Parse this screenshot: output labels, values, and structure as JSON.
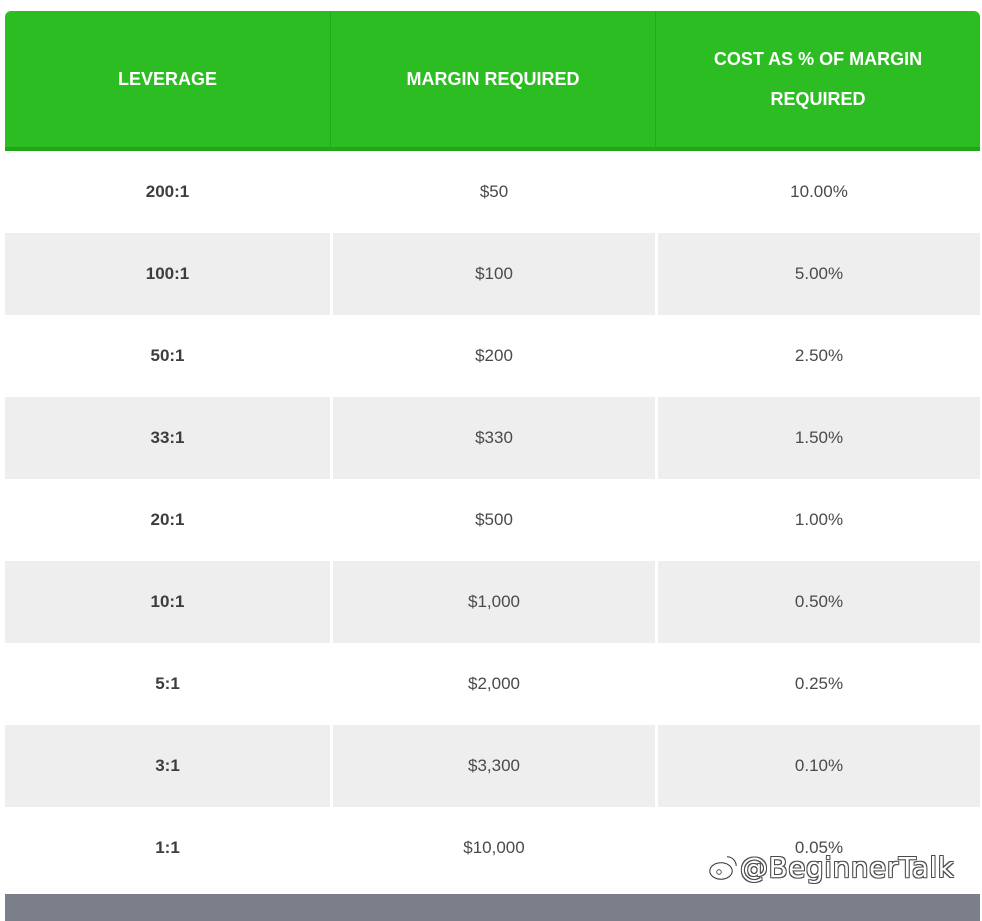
{
  "table": {
    "headers": {
      "leverage": "LEVERAGE",
      "margin": "MARGIN REQUIRED",
      "cost_line1": "COST AS % OF MARGIN",
      "cost_line2": "REQUIRED"
    },
    "rows": [
      {
        "leverage": "200:1",
        "margin": "$50",
        "cost": "10.00%"
      },
      {
        "leverage": "100:1",
        "margin": "$100",
        "cost": "5.00%"
      },
      {
        "leverage": "50:1",
        "margin": "$200",
        "cost": "2.50%"
      },
      {
        "leverage": "33:1",
        "margin": "$330",
        "cost": "1.50%"
      },
      {
        "leverage": "20:1",
        "margin": "$500",
        "cost": "1.00%"
      },
      {
        "leverage": "10:1",
        "margin": "$1,000",
        "cost": "0.50%"
      },
      {
        "leverage": "5:1",
        "margin": "$2,000",
        "cost": "0.25%"
      },
      {
        "leverage": "3:1",
        "margin": "$3,300",
        "cost": "0.10%"
      },
      {
        "leverage": "1:1",
        "margin": "$10,000",
        "cost": "0.05%"
      }
    ]
  },
  "watermark": {
    "text": "@BeginnerTalk",
    "icon": "weibo-logo-icon"
  },
  "colors": {
    "header_bg": "#2bbd22",
    "stripe_bg": "#eeeeee",
    "footer_bar": "#7b7f8a"
  }
}
